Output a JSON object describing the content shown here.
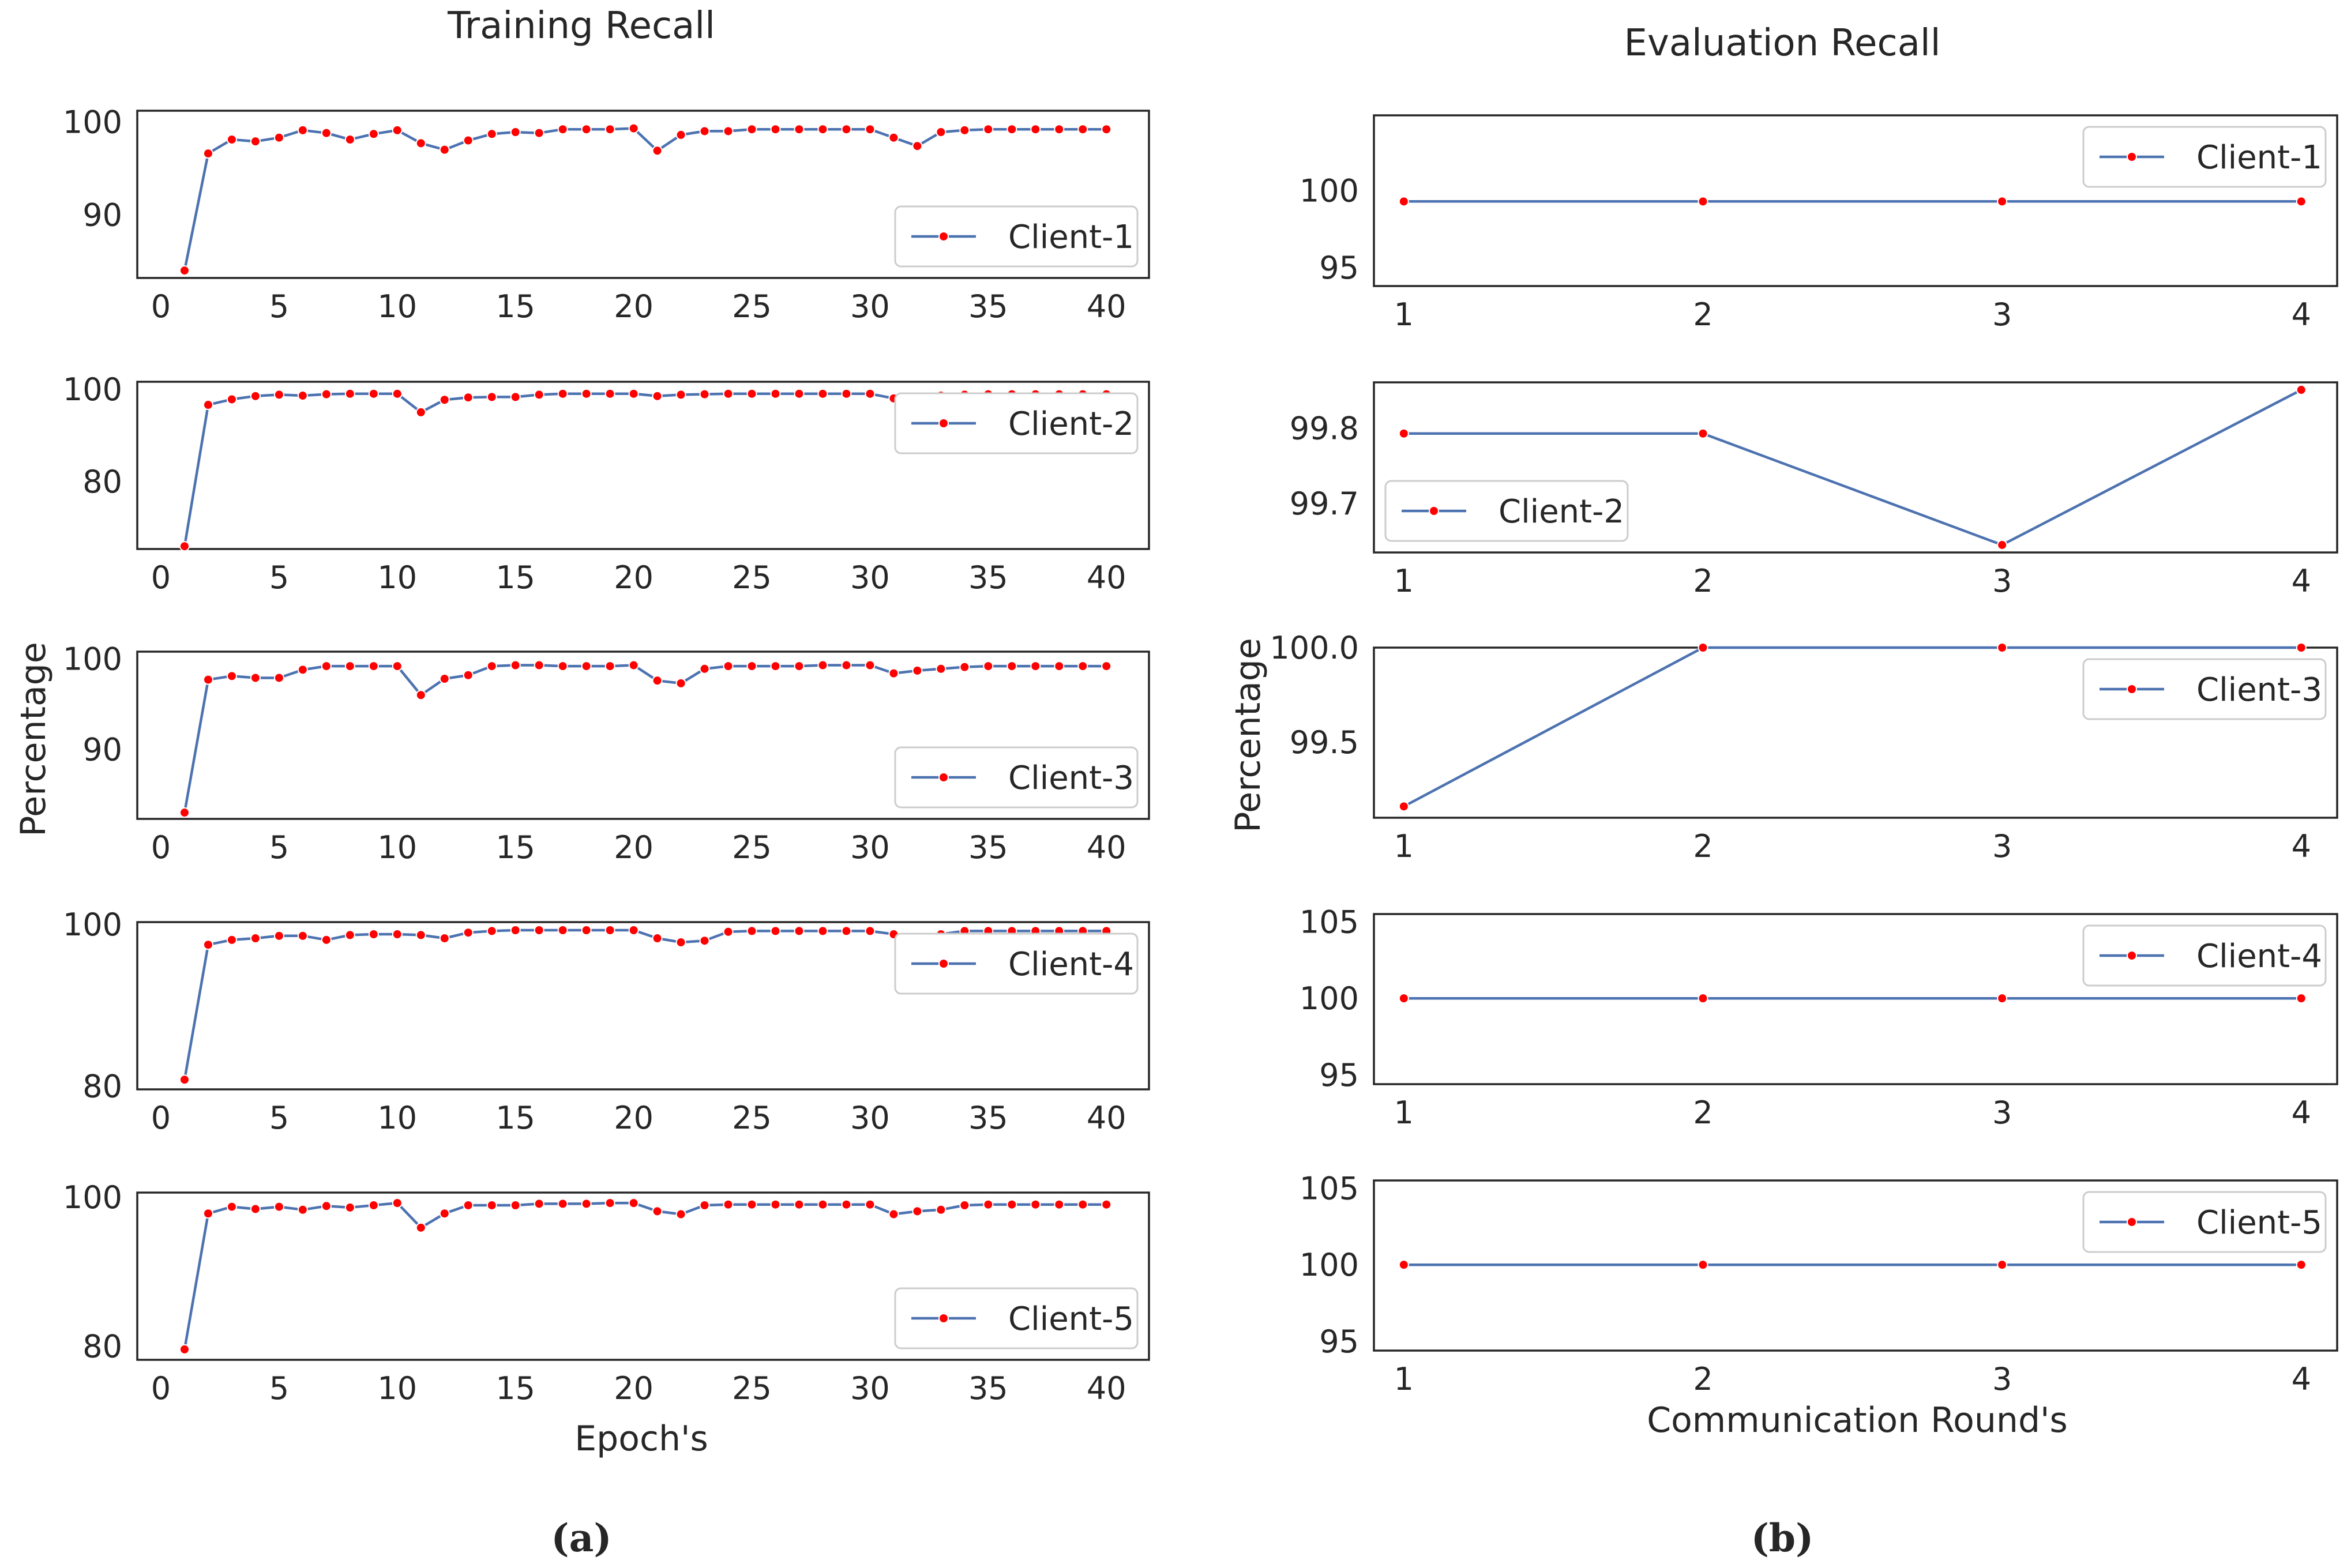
{
  "panel_labels": [
    "(a)",
    "(b)"
  ],
  "chart_data": [
    {
      "type": "line",
      "title": "Training Recall",
      "xlabel": "Epoch's",
      "ylabel": "Percentage",
      "x_ticks": [
        0,
        5,
        10,
        15,
        20,
        25,
        30,
        35,
        40
      ],
      "x": [
        1,
        2,
        3,
        4,
        5,
        6,
        7,
        8,
        9,
        10,
        11,
        12,
        13,
        14,
        15,
        16,
        17,
        18,
        19,
        20,
        21,
        22,
        23,
        24,
        25,
        26,
        27,
        28,
        29,
        30,
        31,
        32,
        33,
        34,
        35,
        36,
        37,
        38,
        39,
        40
      ],
      "legend_position": "lower-right and upper-right",
      "grid": false,
      "line_color": "#4c72b0",
      "marker_color": "#ff0000",
      "subplots": [
        {
          "name": "Client-1",
          "ylim": [
            83.2,
            101.2
          ],
          "yticks": [
            90,
            100
          ],
          "legend": "lower-right",
          "values": [
            84.0,
            96.6,
            98.1,
            97.9,
            98.3,
            99.1,
            98.8,
            98.1,
            98.7,
            99.1,
            97.7,
            97.0,
            98.0,
            98.7,
            98.9,
            98.8,
            99.2,
            99.2,
            99.2,
            99.3,
            96.9,
            98.6,
            99.0,
            99.0,
            99.2,
            99.2,
            99.2,
            99.2,
            99.2,
            99.2,
            98.3,
            97.4,
            98.9,
            99.1,
            99.2,
            99.2,
            99.2,
            99.2,
            99.2,
            99.2
          ]
        },
        {
          "name": "Client-2",
          "ylim": [
            65.4,
            101.6
          ],
          "yticks": [
            80,
            100
          ],
          "legend": "upper-right",
          "values": [
            66.0,
            96.6,
            97.8,
            98.5,
            98.8,
            98.6,
            98.9,
            99.0,
            99.0,
            99.0,
            95.0,
            97.7,
            98.2,
            98.3,
            98.3,
            98.8,
            99.0,
            99.0,
            99.0,
            99.0,
            98.5,
            98.8,
            98.9,
            99.0,
            99.0,
            99.0,
            99.0,
            99.0,
            99.0,
            99.0,
            98.0,
            98.3,
            98.6,
            98.8,
            98.9,
            98.9,
            98.9,
            98.9,
            98.9,
            98.9
          ]
        },
        {
          "name": "Client-3",
          "ylim": [
            82.3,
            100.8
          ],
          "yticks": [
            90,
            100
          ],
          "legend": "lower-right",
          "values": [
            83.0,
            97.7,
            98.1,
            97.9,
            97.9,
            98.8,
            99.2,
            99.2,
            99.2,
            99.2,
            96.0,
            97.8,
            98.2,
            99.2,
            99.3,
            99.3,
            99.2,
            99.2,
            99.2,
            99.3,
            97.6,
            97.3,
            98.9,
            99.2,
            99.2,
            99.2,
            99.2,
            99.3,
            99.3,
            99.3,
            98.4,
            98.7,
            98.9,
            99.1,
            99.2,
            99.2,
            99.2,
            99.2,
            99.2,
            99.2
          ]
        },
        {
          "name": "Client-4",
          "ylim": [
            79.6,
            100.3
          ],
          "yticks": [
            80,
            100
          ],
          "legend": "upper-right",
          "values": [
            80.8,
            97.5,
            98.1,
            98.3,
            98.6,
            98.6,
            98.1,
            98.7,
            98.8,
            98.8,
            98.7,
            98.3,
            99.0,
            99.2,
            99.3,
            99.3,
            99.3,
            99.3,
            99.3,
            99.3,
            98.3,
            97.8,
            98.0,
            99.1,
            99.2,
            99.2,
            99.2,
            99.2,
            99.2,
            99.2,
            98.8,
            98.4,
            98.8,
            99.2,
            99.2,
            99.2,
            99.2,
            99.2,
            99.2,
            99.2
          ]
        },
        {
          "name": "Client-5",
          "ylim": [
            78.2,
            100.6
          ],
          "yticks": [
            80,
            100
          ],
          "legend": "lower-right",
          "values": [
            79.6,
            97.8,
            98.7,
            98.4,
            98.7,
            98.3,
            98.8,
            98.6,
            98.9,
            99.2,
            95.9,
            97.8,
            98.9,
            98.9,
            98.9,
            99.1,
            99.1,
            99.1,
            99.2,
            99.2,
            98.1,
            97.7,
            98.9,
            99.0,
            99.0,
            99.0,
            99.0,
            99.0,
            99.0,
            99.0,
            97.7,
            98.1,
            98.3,
            98.9,
            99.0,
            99.0,
            99.0,
            99.0,
            99.0,
            99.0
          ]
        }
      ]
    },
    {
      "type": "line",
      "title": "Evaluation Recall",
      "xlabel": "Communication Round's",
      "ylabel": "Percentage",
      "x_ticks": [
        1,
        2,
        3,
        4
      ],
      "x": [
        1,
        2,
        3,
        4
      ],
      "grid": false,
      "line_color": "#4c72b0",
      "marker_color": "#ff0000",
      "subplots": [
        {
          "name": "Client-1",
          "ylim": [
            93.8,
            104.9
          ],
          "yticks": [
            95,
            100
          ],
          "ytick_labels": [
            "95",
            "100"
          ],
          "legend": "upper-right",
          "values": [
            99.3,
            99.3,
            99.3,
            99.3
          ]
        },
        {
          "name": "Client-2",
          "ylim": [
            99.635,
            99.861
          ],
          "yticks": [
            99.7,
            99.8
          ],
          "ytick_labels": [
            "99.7",
            "99.8"
          ],
          "legend": "lower-left",
          "values": [
            99.793,
            99.793,
            99.645,
            99.851
          ]
        },
        {
          "name": "Client-3",
          "ylim": [
            99.1,
            100.0
          ],
          "yticks": [
            99.5,
            100.0
          ],
          "ytick_labels": [
            "99.5",
            "100.0"
          ],
          "legend": "upper-right",
          "values": [
            99.16,
            100.0,
            100.0,
            100.0
          ]
        },
        {
          "name": "Client-4",
          "ylim": [
            94.4,
            105.5
          ],
          "yticks": [
            95,
            100,
            105
          ],
          "ytick_labels": [
            "95",
            "100",
            "105"
          ],
          "legend": "upper-right",
          "values": [
            100,
            100,
            100,
            100
          ]
        },
        {
          "name": "Client-5",
          "ylim": [
            94.4,
            105.5
          ],
          "yticks": [
            95,
            100,
            105
          ],
          "ytick_labels": [
            "95",
            "100",
            "105"
          ],
          "legend": "upper-right",
          "values": [
            100,
            100,
            100,
            100
          ]
        }
      ]
    }
  ]
}
